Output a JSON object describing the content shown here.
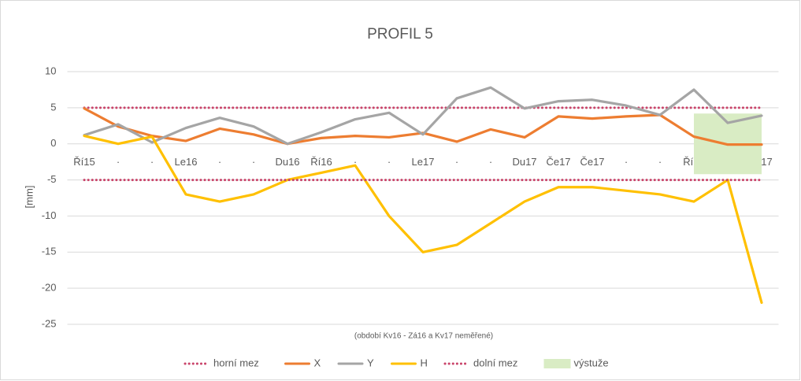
{
  "chart_data": {
    "type": "line",
    "title": "PROFIL 5",
    "y_label": "[mm]",
    "annotation": "(období Kv16 - Zá16 a Kv17 neměřené)",
    "categories": [
      "Ří15",
      "·",
      "·",
      "Le16",
      "·",
      "·",
      "Du16",
      "Ří16",
      "·",
      "·",
      "Le17",
      "·",
      "·",
      "Du17",
      "Če17",
      "Če17",
      "·",
      "·",
      "Ří17",
      "·",
      "Pr17"
    ],
    "ylim": [
      -25,
      10
    ],
    "yticks": [
      -25,
      -20,
      -15,
      -10,
      -5,
      0,
      5,
      10
    ],
    "grid": true,
    "legend": "bottom",
    "series": [
      {
        "name": "horní mez",
        "color": "#c9446a",
        "style": "dotted",
        "values": [
          5,
          5,
          5,
          5,
          5,
          5,
          5,
          5,
          5,
          5,
          5,
          5,
          5,
          5,
          5,
          5,
          5,
          5,
          5,
          5,
          5
        ]
      },
      {
        "name": "X",
        "color": "#ed7d31",
        "style": "solid",
        "values": [
          4.9,
          2.4,
          1.1,
          0.4,
          2.1,
          1.3,
          0,
          0.8,
          1.1,
          0.9,
          1.5,
          0.3,
          2,
          0.9,
          3.8,
          3.5,
          3.8,
          4,
          1,
          -0.1,
          -0.1
        ]
      },
      {
        "name": "Y",
        "color": "#a5a5a5",
        "style": "solid",
        "values": [
          1.2,
          2.7,
          0.2,
          2.2,
          3.6,
          2.4,
          0,
          1.6,
          3.4,
          4.3,
          1.3,
          6.3,
          7.8,
          4.9,
          5.9,
          6.1,
          5.3,
          4,
          7.5,
          2.9,
          3.9
        ]
      },
      {
        "name": "H",
        "color": "#ffc000",
        "style": "solid",
        "values": [
          1.1,
          0,
          1,
          -7,
          -8,
          -7,
          -5,
          -4,
          -3,
          -10,
          -15,
          -14,
          -11,
          -8,
          -6,
          -6,
          -6.5,
          -7,
          -8,
          -5,
          -22
        ]
      },
      {
        "name": "dolní mez",
        "color": "#c9446a",
        "style": "dotted",
        "values": [
          -5,
          -5,
          -5,
          -5,
          -5,
          -5,
          -5,
          -5,
          -5,
          -5,
          -5,
          -5,
          -5,
          -5,
          -5,
          -5,
          -5,
          -5,
          -5,
          -5,
          -5
        ]
      },
      {
        "name": "výstuže",
        "color": "#d9ecc4",
        "style": "band",
        "values": [
          null,
          null,
          null,
          null,
          null,
          null,
          null,
          null,
          null,
          null,
          null,
          null,
          null,
          null,
          null,
          null,
          null,
          null,
          4.2,
          4.2,
          4.2
        ],
        "base_values": [
          null,
          null,
          null,
          null,
          null,
          null,
          null,
          null,
          null,
          null,
          null,
          null,
          null,
          null,
          null,
          null,
          null,
          null,
          -4.2,
          -4.2,
          -4.2
        ]
      }
    ]
  }
}
